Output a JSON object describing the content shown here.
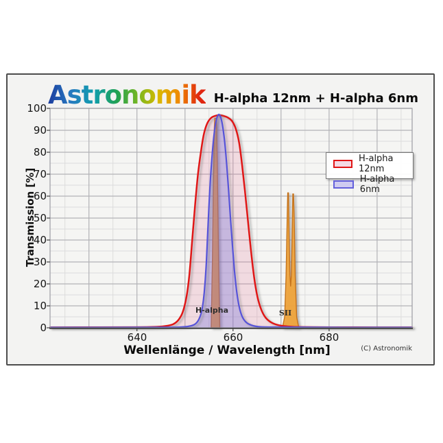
{
  "header": {
    "logo": "Astronomik",
    "title": "H-alpha 12nm + H-alpha 6nm"
  },
  "copyright": "(C) Astronomik",
  "legend": {
    "position": "upper right",
    "items": [
      {
        "label": "H-alpha 12nm",
        "stroke": "#e01515",
        "fill": "#f4d9e3"
      },
      {
        "label": "H-alpha 6nm",
        "stroke": "#6360db",
        "fill": "#cfcbf0"
      }
    ]
  },
  "chart_data": {
    "type": "area",
    "title": "H-alpha 12nm + H-alpha 6nm",
    "xlabel": "Wellenlänge / Wavelength [nm]",
    "ylabel": "Transmission [%]",
    "xlim": [
      621.9,
      697.3
    ],
    "ylim": [
      0,
      100
    ],
    "x_ticks_labeled": [
      640,
      660,
      680
    ],
    "x_grid_step": 5,
    "x_major_step": 10,
    "y_ticks_labeled": [
      0,
      10,
      20,
      30,
      40,
      50,
      60,
      70,
      80,
      90,
      100
    ],
    "y_grid_step": 5,
    "y_major_step": 10,
    "grid": true,
    "colors": {
      "grid_minor": "#dcdcdc",
      "grid_major": "#b2b2b6",
      "plot_border": "#9b9ba3",
      "axis": "#3f3f3f",
      "plot_bg": "#f5f5f3"
    },
    "series": [
      {
        "name": "H-alpha 12nm",
        "center_nm": 657,
        "fwhm_nm": 12,
        "peak_transmission_pct": 97,
        "stroke": "#e01515",
        "fill": "rgba(226,112,150,0.20)",
        "points": [
          [
            621.9,
            0.2
          ],
          [
            632,
            0.22
          ],
          [
            640,
            0.28
          ],
          [
            644,
            0.45
          ],
          [
            646,
            0.8
          ],
          [
            647.5,
            1.6
          ],
          [
            648.6,
            3.5
          ],
          [
            649.5,
            7
          ],
          [
            650.3,
            14
          ],
          [
            650.9,
            24
          ],
          [
            651.5,
            40
          ],
          [
            652.1,
            56
          ],
          [
            652.7,
            70
          ],
          [
            653.3,
            80
          ],
          [
            653.9,
            88
          ],
          [
            654.6,
            93
          ],
          [
            655.4,
            95.6
          ],
          [
            656.3,
            96.6
          ],
          [
            657.2,
            96.9
          ],
          [
            658.1,
            96.5
          ],
          [
            659,
            95.7
          ],
          [
            659.8,
            94.2
          ],
          [
            660.6,
            90.5
          ],
          [
            661.3,
            84
          ],
          [
            661.9,
            74
          ],
          [
            662.5,
            62
          ],
          [
            663.1,
            49
          ],
          [
            663.7,
            36
          ],
          [
            664.4,
            23
          ],
          [
            665.1,
            14
          ],
          [
            665.9,
            8.2
          ],
          [
            666.8,
            4.6
          ],
          [
            668,
            2.4
          ],
          [
            669.5,
            1.2
          ],
          [
            671.5,
            0.6
          ],
          [
            674,
            0.35
          ],
          [
            680,
            0.25
          ],
          [
            690,
            0.2
          ],
          [
            697.3,
            0.2
          ]
        ]
      },
      {
        "name": "H-alpha 6nm",
        "center_nm": 657,
        "fwhm_nm": 6,
        "peak_transmission_pct": 97,
        "stroke": "#5753d8",
        "fill": "rgba(98,104,218,0.30)",
        "points": [
          [
            621.9,
            0.15
          ],
          [
            640,
            0.18
          ],
          [
            648,
            0.25
          ],
          [
            650.5,
            0.6
          ],
          [
            651.8,
            1.3
          ],
          [
            652.6,
            2.8
          ],
          [
            653.2,
            5.5
          ],
          [
            653.6,
            9
          ],
          [
            654,
            16
          ],
          [
            654.4,
            28
          ],
          [
            654.7,
            42
          ],
          [
            655,
            56
          ],
          [
            655.3,
            68
          ],
          [
            655.7,
            80
          ],
          [
            656.1,
            89
          ],
          [
            656.5,
            94.5
          ],
          [
            657,
            97.2
          ],
          [
            657.5,
            95.5
          ],
          [
            657.9,
            91
          ],
          [
            658.3,
            84
          ],
          [
            658.7,
            74
          ],
          [
            659.1,
            62
          ],
          [
            659.5,
            49
          ],
          [
            659.9,
            37
          ],
          [
            660.3,
            26
          ],
          [
            660.8,
            16
          ],
          [
            661.3,
            9.5
          ],
          [
            661.9,
            5.2
          ],
          [
            662.7,
            2.6
          ],
          [
            663.7,
            1.3
          ],
          [
            665,
            0.6
          ],
          [
            668,
            0.3
          ],
          [
            680,
            0.18
          ],
          [
            697.3,
            0.15
          ]
        ]
      }
    ],
    "emission_lines": [
      {
        "name": "H-alpha",
        "label": "H-alpha",
        "wavelength_nm": 656.3,
        "peak_pct": 95.5,
        "label_pos": [
          655.6,
          8
        ],
        "label_font": "sans",
        "stroke": "#c4731c",
        "fill": "#efa43c",
        "points": [
          [
            655.45,
            0
          ],
          [
            655.7,
            30
          ],
          [
            655.95,
            72
          ],
          [
            656.1,
            91
          ],
          [
            656.2,
            95.5
          ],
          [
            656.5,
            95.5
          ],
          [
            656.6,
            91
          ],
          [
            656.75,
            72
          ],
          [
            657,
            30
          ],
          [
            657.25,
            0
          ]
        ]
      },
      {
        "name": "SII",
        "label": "SII",
        "wavelength_nm": 672,
        "peak_pct": 61.5,
        "label_pos": [
          670.9,
          7
        ],
        "label_font": "serif",
        "stroke": "#c4731c",
        "fill": "#efa43c",
        "points": [
          [
            670.3,
            0
          ],
          [
            670.75,
            5
          ],
          [
            671.05,
            24
          ],
          [
            671.3,
            52
          ],
          [
            671.4,
            61.5
          ],
          [
            671.55,
            61.5
          ],
          [
            671.7,
            40
          ],
          [
            671.85,
            24
          ],
          [
            672,
            19
          ],
          [
            672.15,
            24
          ],
          [
            672.3,
            40
          ],
          [
            672.45,
            61
          ],
          [
            672.6,
            61
          ],
          [
            672.72,
            52
          ],
          [
            672.95,
            24
          ],
          [
            673.25,
            5
          ],
          [
            673.7,
            0
          ]
        ]
      }
    ]
  }
}
